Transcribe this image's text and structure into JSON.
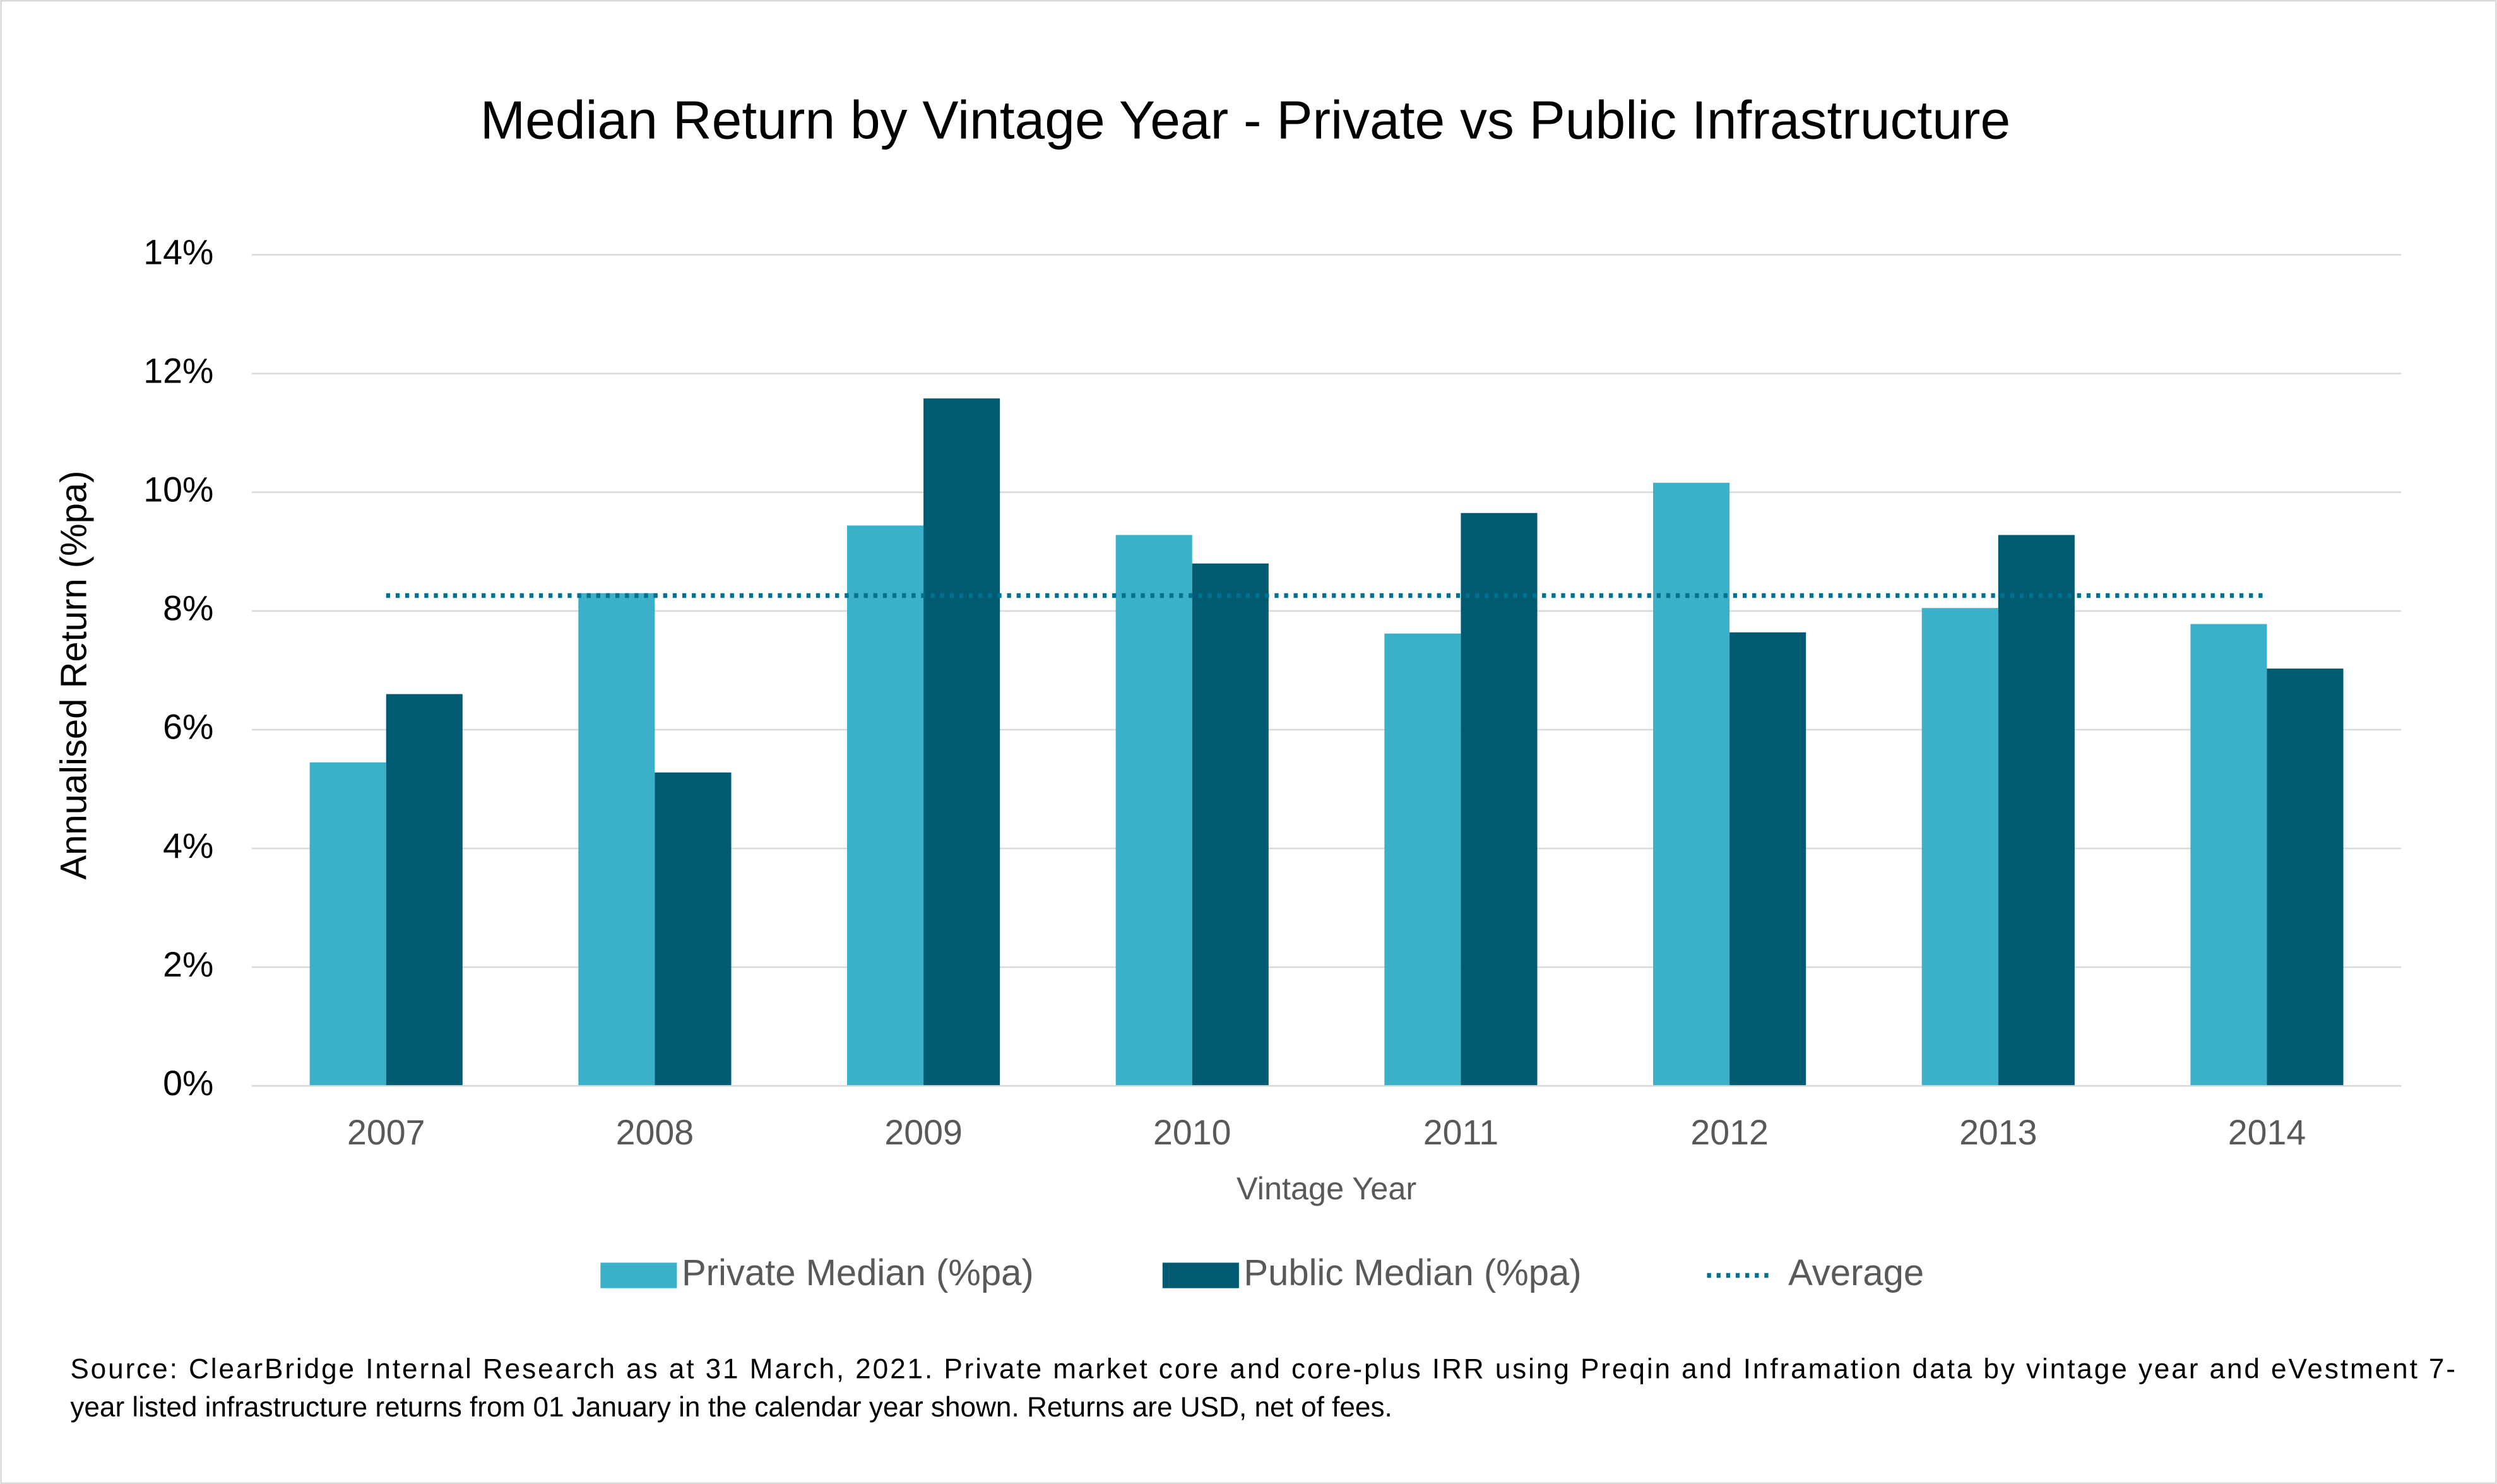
{
  "chart_data": {
    "type": "bar",
    "title": "Median Return by Vintage Year - Private vs Public Infrastructure",
    "x_label": "Vintage Year",
    "y_label": "Annualised Return (%pa)",
    "categories": [
      "2007",
      "2008",
      "2009",
      "2010",
      "2011",
      "2012",
      "2013",
      "2014"
    ],
    "series": [
      {
        "name": "Private Median (%pa)",
        "color": "#3ab0c9",
        "values": [
          5.45,
          8.3,
          9.44,
          9.28,
          7.62,
          10.16,
          8.05,
          7.78
        ]
      },
      {
        "name": "Public Median (%pa)",
        "color": "#005a72",
        "values": [
          6.6,
          5.28,
          11.58,
          8.8,
          9.65,
          7.64,
          9.28,
          7.03
        ]
      },
      {
        "name": "Average",
        "type": "line",
        "color": "#00718f",
        "values": [
          8.26,
          8.26,
          8.26,
          8.26,
          8.26,
          8.26,
          8.26,
          8.26
        ]
      }
    ],
    "ylim": [
      0,
      14
    ],
    "yticks": [
      {
        "value": 0,
        "label": "0%"
      },
      {
        "value": 2,
        "label": "2%"
      },
      {
        "value": 4,
        "label": "4%"
      },
      {
        "value": 6,
        "label": "6%"
      },
      {
        "value": 8,
        "label": "8%"
      },
      {
        "value": 10,
        "label": "10%"
      },
      {
        "value": 12,
        "label": "12%"
      },
      {
        "value": 14,
        "label": "14%"
      }
    ],
    "grid": true,
    "legend": "bottom",
    "footnote": [
      "Source: ClearBridge Internal Research as at 31 March, 2021. Private market core and core-plus IRR using Preqin and Inframation data by vintage year and eVestment 7-",
      "year listed infrastructure returns from 01 January in the calendar year shown. Returns are USD, net of fees."
    ]
  }
}
